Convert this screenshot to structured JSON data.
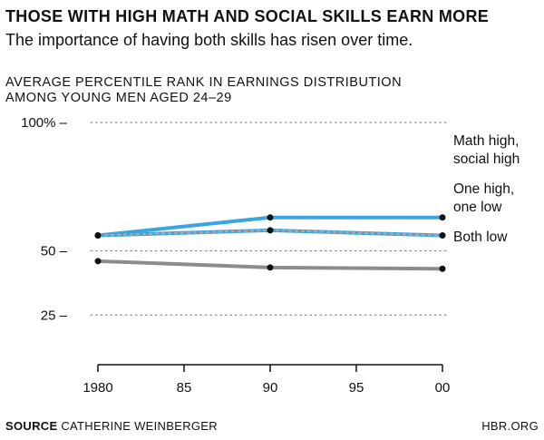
{
  "header": {
    "title": "THOSE WITH HIGH MATH AND SOCIAL SKILLS EARN MORE",
    "subtitle": "The importance of having both skills has risen over time."
  },
  "chart_data": {
    "type": "line",
    "ylabel_line1": "AVERAGE PERCENTILE RANK IN EARNINGS DISTRIBUTION",
    "ylabel_line2": "AMONG YOUNG MEN AGED 24–29",
    "x": [
      1980,
      1990,
      2000
    ],
    "xlim": [
      1980,
      2000
    ],
    "xticks": [
      1980,
      1985,
      1990,
      1995,
      2000
    ],
    "xtick_labels": [
      "1980",
      "85",
      "90",
      "95",
      "00"
    ],
    "ylim": [
      0,
      100
    ],
    "yticks": [
      25,
      50,
      100
    ],
    "ytick_labels": [
      "25 –",
      "50 –",
      "100% –"
    ],
    "grid": "dotted horizontal",
    "legend": "direct labels at right",
    "series": [
      {
        "name_lines": [
          "Math high,",
          "social high"
        ],
        "values": [
          56,
          63,
          63
        ],
        "color": "#3aa6e0",
        "style": "solid"
      },
      {
        "name_lines": [
          "One high,",
          "one low"
        ],
        "values": [
          56,
          58,
          56
        ],
        "color": "#3aa6e0",
        "dash_color": "#c9a19a",
        "style": "dashed"
      },
      {
        "name_lines": [
          "Both low"
        ],
        "values": [
          46,
          43.5,
          43
        ],
        "color": "#8c8c8c",
        "style": "solid"
      }
    ]
  },
  "footer": {
    "source_label": "SOURCE",
    "source_text": "CATHERINE WEINBERGER",
    "brand": "HBR.ORG"
  }
}
